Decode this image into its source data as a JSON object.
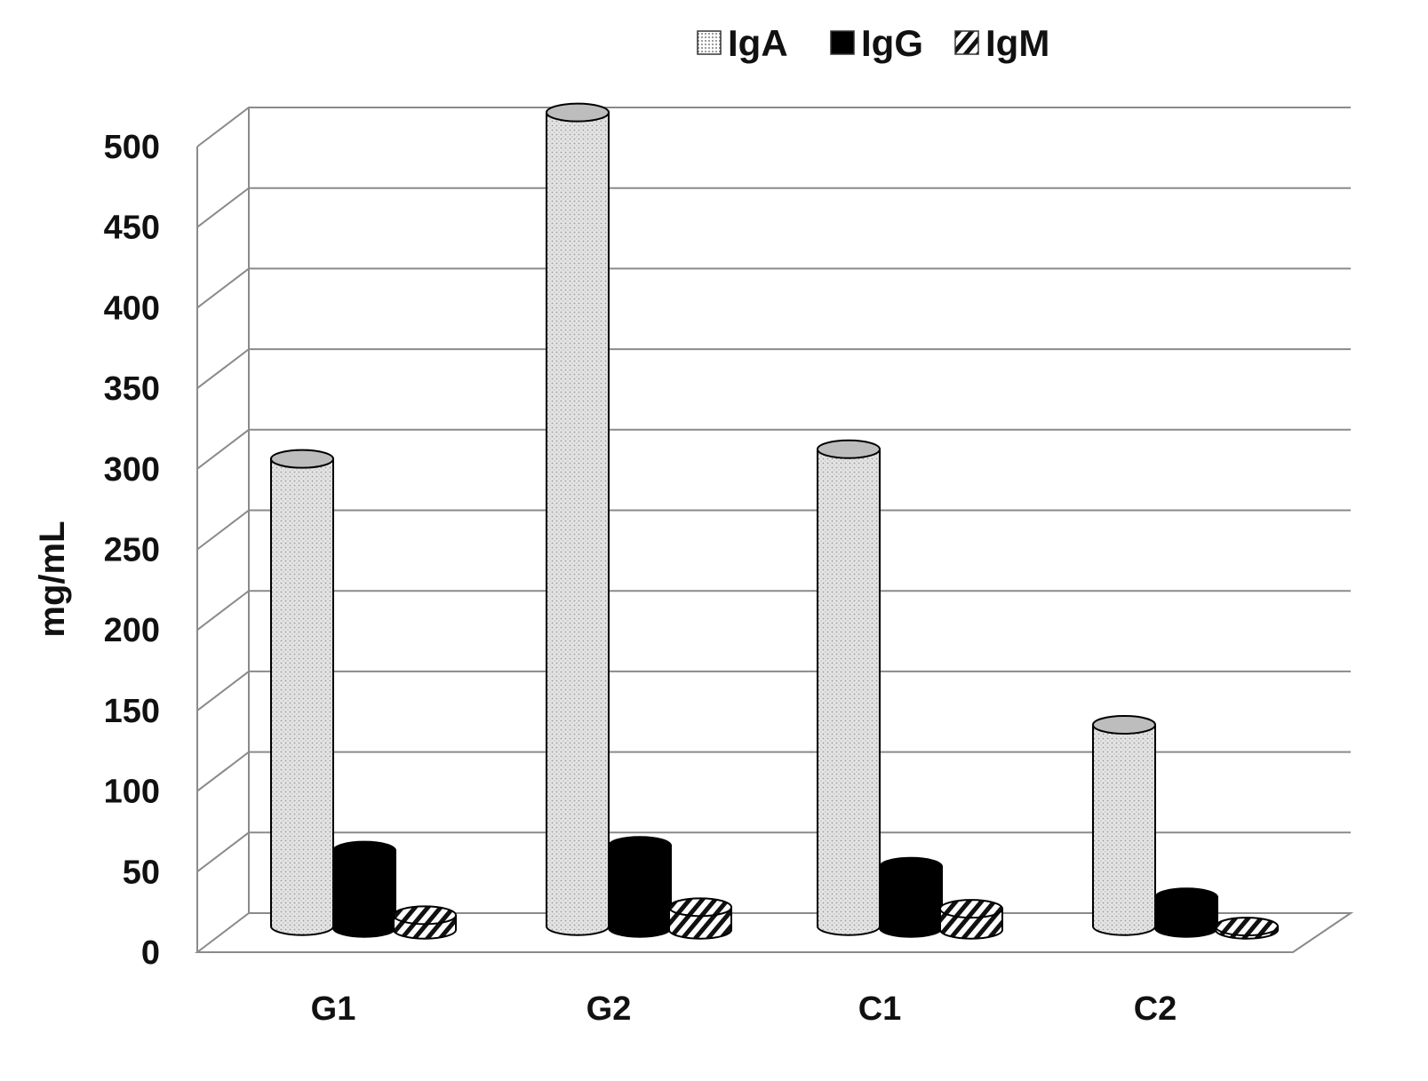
{
  "chart_data": {
    "type": "bar",
    "style": "3d-cylinder",
    "categories": [
      "G1",
      "G2",
      "C1",
      "C2"
    ],
    "series": [
      {
        "name": "IgA",
        "values": [
          290,
          505,
          296,
          125
        ],
        "pattern": "dotted",
        "color": "#dcdcdc"
      },
      {
        "name": "IgG",
        "values": [
          48,
          51,
          38,
          19
        ],
        "pattern": "solid",
        "color": "#000000"
      },
      {
        "name": "IgM",
        "values": [
          9,
          14,
          13,
          2
        ],
        "pattern": "diagonal-hatch",
        "color": "#ffffff"
      }
    ],
    "ylabel": "mg/mL",
    "ylim": [
      0,
      500
    ],
    "yticks": [
      0,
      50,
      100,
      150,
      200,
      250,
      300,
      350,
      400,
      450,
      500
    ],
    "grid": true,
    "legend": "top-center"
  }
}
